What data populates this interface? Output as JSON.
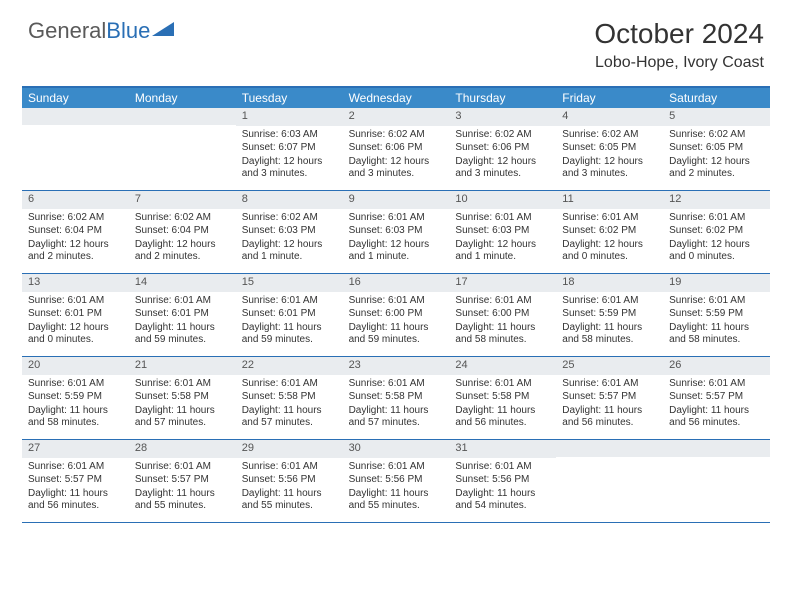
{
  "logo": {
    "text_gray": "General",
    "text_blue": "Blue"
  },
  "title": "October 2024",
  "location": "Lobo-Hope, Ivory Coast",
  "colors": {
    "header_bg": "#3a8ac9",
    "border": "#2a6fb5",
    "daynum_bg": "#e9ecef",
    "text": "#333333"
  },
  "day_names": [
    "Sunday",
    "Monday",
    "Tuesday",
    "Wednesday",
    "Thursday",
    "Friday",
    "Saturday"
  ],
  "weeks": [
    [
      {
        "n": "",
        "sr": "",
        "ss": "",
        "dl": ""
      },
      {
        "n": "",
        "sr": "",
        "ss": "",
        "dl": ""
      },
      {
        "n": "1",
        "sr": "Sunrise: 6:03 AM",
        "ss": "Sunset: 6:07 PM",
        "dl": "Daylight: 12 hours and 3 minutes."
      },
      {
        "n": "2",
        "sr": "Sunrise: 6:02 AM",
        "ss": "Sunset: 6:06 PM",
        "dl": "Daylight: 12 hours and 3 minutes."
      },
      {
        "n": "3",
        "sr": "Sunrise: 6:02 AM",
        "ss": "Sunset: 6:06 PM",
        "dl": "Daylight: 12 hours and 3 minutes."
      },
      {
        "n": "4",
        "sr": "Sunrise: 6:02 AM",
        "ss": "Sunset: 6:05 PM",
        "dl": "Daylight: 12 hours and 3 minutes."
      },
      {
        "n": "5",
        "sr": "Sunrise: 6:02 AM",
        "ss": "Sunset: 6:05 PM",
        "dl": "Daylight: 12 hours and 2 minutes."
      }
    ],
    [
      {
        "n": "6",
        "sr": "Sunrise: 6:02 AM",
        "ss": "Sunset: 6:04 PM",
        "dl": "Daylight: 12 hours and 2 minutes."
      },
      {
        "n": "7",
        "sr": "Sunrise: 6:02 AM",
        "ss": "Sunset: 6:04 PM",
        "dl": "Daylight: 12 hours and 2 minutes."
      },
      {
        "n": "8",
        "sr": "Sunrise: 6:02 AM",
        "ss": "Sunset: 6:03 PM",
        "dl": "Daylight: 12 hours and 1 minute."
      },
      {
        "n": "9",
        "sr": "Sunrise: 6:01 AM",
        "ss": "Sunset: 6:03 PM",
        "dl": "Daylight: 12 hours and 1 minute."
      },
      {
        "n": "10",
        "sr": "Sunrise: 6:01 AM",
        "ss": "Sunset: 6:03 PM",
        "dl": "Daylight: 12 hours and 1 minute."
      },
      {
        "n": "11",
        "sr": "Sunrise: 6:01 AM",
        "ss": "Sunset: 6:02 PM",
        "dl": "Daylight: 12 hours and 0 minutes."
      },
      {
        "n": "12",
        "sr": "Sunrise: 6:01 AM",
        "ss": "Sunset: 6:02 PM",
        "dl": "Daylight: 12 hours and 0 minutes."
      }
    ],
    [
      {
        "n": "13",
        "sr": "Sunrise: 6:01 AM",
        "ss": "Sunset: 6:01 PM",
        "dl": "Daylight: 12 hours and 0 minutes."
      },
      {
        "n": "14",
        "sr": "Sunrise: 6:01 AM",
        "ss": "Sunset: 6:01 PM",
        "dl": "Daylight: 11 hours and 59 minutes."
      },
      {
        "n": "15",
        "sr": "Sunrise: 6:01 AM",
        "ss": "Sunset: 6:01 PM",
        "dl": "Daylight: 11 hours and 59 minutes."
      },
      {
        "n": "16",
        "sr": "Sunrise: 6:01 AM",
        "ss": "Sunset: 6:00 PM",
        "dl": "Daylight: 11 hours and 59 minutes."
      },
      {
        "n": "17",
        "sr": "Sunrise: 6:01 AM",
        "ss": "Sunset: 6:00 PM",
        "dl": "Daylight: 11 hours and 58 minutes."
      },
      {
        "n": "18",
        "sr": "Sunrise: 6:01 AM",
        "ss": "Sunset: 5:59 PM",
        "dl": "Daylight: 11 hours and 58 minutes."
      },
      {
        "n": "19",
        "sr": "Sunrise: 6:01 AM",
        "ss": "Sunset: 5:59 PM",
        "dl": "Daylight: 11 hours and 58 minutes."
      }
    ],
    [
      {
        "n": "20",
        "sr": "Sunrise: 6:01 AM",
        "ss": "Sunset: 5:59 PM",
        "dl": "Daylight: 11 hours and 58 minutes."
      },
      {
        "n": "21",
        "sr": "Sunrise: 6:01 AM",
        "ss": "Sunset: 5:58 PM",
        "dl": "Daylight: 11 hours and 57 minutes."
      },
      {
        "n": "22",
        "sr": "Sunrise: 6:01 AM",
        "ss": "Sunset: 5:58 PM",
        "dl": "Daylight: 11 hours and 57 minutes."
      },
      {
        "n": "23",
        "sr": "Sunrise: 6:01 AM",
        "ss": "Sunset: 5:58 PM",
        "dl": "Daylight: 11 hours and 57 minutes."
      },
      {
        "n": "24",
        "sr": "Sunrise: 6:01 AM",
        "ss": "Sunset: 5:58 PM",
        "dl": "Daylight: 11 hours and 56 minutes."
      },
      {
        "n": "25",
        "sr": "Sunrise: 6:01 AM",
        "ss": "Sunset: 5:57 PM",
        "dl": "Daylight: 11 hours and 56 minutes."
      },
      {
        "n": "26",
        "sr": "Sunrise: 6:01 AM",
        "ss": "Sunset: 5:57 PM",
        "dl": "Daylight: 11 hours and 56 minutes."
      }
    ],
    [
      {
        "n": "27",
        "sr": "Sunrise: 6:01 AM",
        "ss": "Sunset: 5:57 PM",
        "dl": "Daylight: 11 hours and 56 minutes."
      },
      {
        "n": "28",
        "sr": "Sunrise: 6:01 AM",
        "ss": "Sunset: 5:57 PM",
        "dl": "Daylight: 11 hours and 55 minutes."
      },
      {
        "n": "29",
        "sr": "Sunrise: 6:01 AM",
        "ss": "Sunset: 5:56 PM",
        "dl": "Daylight: 11 hours and 55 minutes."
      },
      {
        "n": "30",
        "sr": "Sunrise: 6:01 AM",
        "ss": "Sunset: 5:56 PM",
        "dl": "Daylight: 11 hours and 55 minutes."
      },
      {
        "n": "31",
        "sr": "Sunrise: 6:01 AM",
        "ss": "Sunset: 5:56 PM",
        "dl": "Daylight: 11 hours and 54 minutes."
      },
      {
        "n": "",
        "sr": "",
        "ss": "",
        "dl": ""
      },
      {
        "n": "",
        "sr": "",
        "ss": "",
        "dl": ""
      }
    ]
  ]
}
